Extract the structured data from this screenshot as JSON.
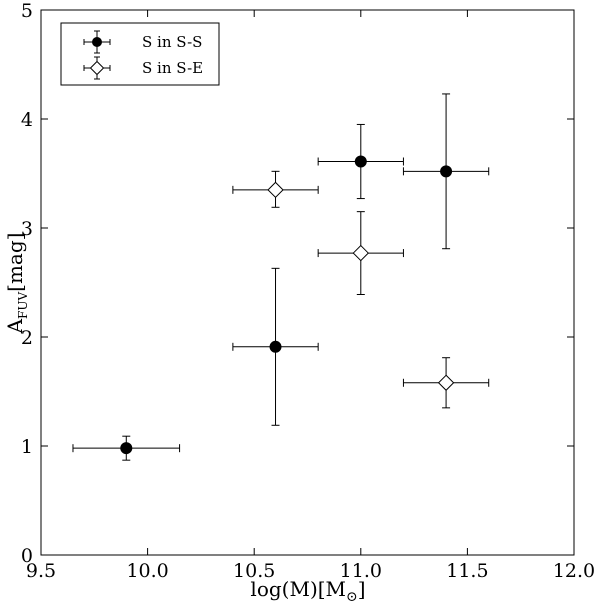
{
  "chart_data": {
    "type": "scatter",
    "xlabel": "log(M)[M",
    "xlabel_sub": "⊙",
    "xlabel_close": "]",
    "ylabel": "A",
    "ylabel_sub": "FUV",
    "ylabel_suffix": "[mag]",
    "xlim": [
      9.5,
      12.0
    ],
    "ylim": [
      0,
      5
    ],
    "xticks": [
      9.5,
      10.0,
      10.5,
      11.0,
      11.5,
      12.0
    ],
    "xtick_labels": [
      "9.5",
      "10.0",
      "10.5",
      "11.0",
      "11.5",
      "12.0"
    ],
    "yticks": [
      0,
      1,
      2,
      3,
      4,
      5
    ],
    "ytick_labels": [
      "0",
      "1",
      "2",
      "3",
      "4",
      "5"
    ],
    "grid": false,
    "legend_position": "top-left",
    "series": [
      {
        "name": "S in S-S",
        "marker": "circle",
        "fill": "#000000",
        "points": [
          {
            "x": 9.9,
            "y": 0.98,
            "xerr": [
              9.65,
              10.15
            ],
            "yerr": [
              0.87,
              1.09
            ]
          },
          {
            "x": 10.6,
            "y": 1.91,
            "xerr": [
              10.4,
              10.8
            ],
            "yerr": [
              1.19,
              2.63
            ]
          },
          {
            "x": 11.0,
            "y": 3.61,
            "xerr": [
              10.8,
              11.2
            ],
            "yerr": [
              3.27,
              3.95
            ]
          },
          {
            "x": 11.4,
            "y": 3.52,
            "xerr": [
              11.2,
              11.6
            ],
            "yerr": [
              2.81,
              4.23
            ]
          }
        ]
      },
      {
        "name": "S in S-E",
        "marker": "diamond",
        "fill": "#ffffff",
        "points": [
          {
            "x": 10.6,
            "y": 3.35,
            "xerr": [
              10.4,
              10.8
            ],
            "yerr": [
              3.19,
              3.52
            ]
          },
          {
            "x": 11.0,
            "y": 2.77,
            "xerr": [
              10.8,
              11.2
            ],
            "yerr": [
              2.39,
              3.15
            ]
          },
          {
            "x": 11.4,
            "y": 1.58,
            "xerr": [
              11.2,
              11.6
            ],
            "yerr": [
              1.35,
              1.81
            ]
          }
        ]
      }
    ]
  }
}
